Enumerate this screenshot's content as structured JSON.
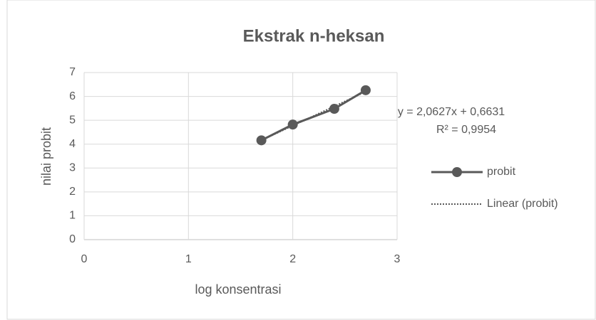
{
  "chart_data": {
    "type": "scatter_line",
    "title": "Ekstrak n-heksan",
    "x_label": "log konsentrasi",
    "y_label": "nilai probit",
    "series": [
      {
        "name": "probit",
        "color": "#595959",
        "x": [
          1.699,
          2.0,
          2.398,
          2.699
        ],
        "values": [
          4.16,
          4.82,
          5.48,
          6.26
        ]
      }
    ],
    "trendline": {
      "name": "Linear (probit)",
      "color": "#595959",
      "equation": "y = 2,0627x + 0,6631",
      "r_squared": "R² = 0,9954"
    },
    "xlim": [
      0,
      3
    ],
    "xticks": [
      0,
      1,
      2,
      3
    ],
    "ylim": [
      0,
      7
    ],
    "yticks": [
      0,
      1,
      2,
      3,
      4,
      5,
      6,
      7
    ],
    "grid": true,
    "legend": "right"
  }
}
